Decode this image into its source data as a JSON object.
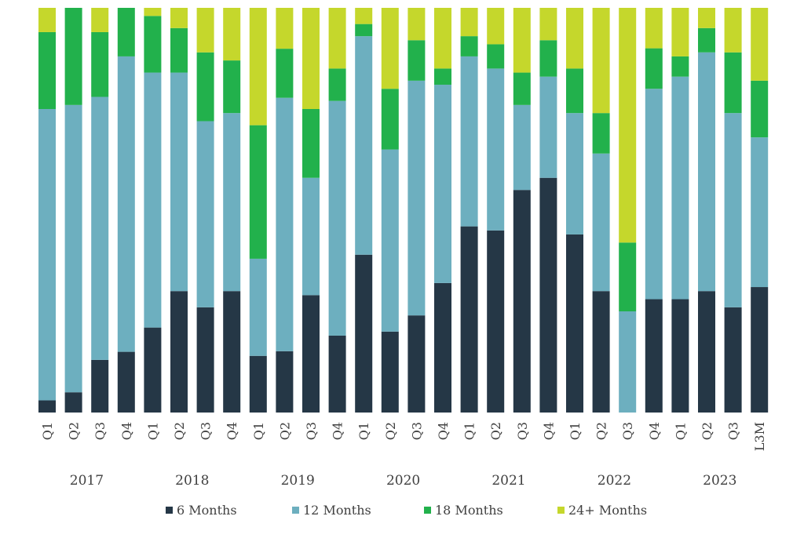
{
  "chart_data": {
    "type": "bar",
    "stacked": true,
    "normalized": true,
    "title": "",
    "xlabel": "",
    "ylabel": "",
    "ylim": [
      0,
      100
    ],
    "grid": false,
    "legend_position": "bottom",
    "categories": [
      "Q1",
      "Q2",
      "Q3",
      "Q4",
      "Q1",
      "Q2",
      "Q3",
      "Q4",
      "Q1",
      "Q2",
      "Q3",
      "Q4",
      "Q1",
      "Q2",
      "Q3",
      "Q4",
      "Q1",
      "Q2",
      "Q3",
      "Q4",
      "Q1",
      "Q2",
      "Q3",
      "Q4",
      "Q1",
      "Q2",
      "Q3",
      "L3M"
    ],
    "year_groups": [
      {
        "label": "2017",
        "start": 0,
        "end": 3
      },
      {
        "label": "2018",
        "start": 4,
        "end": 7
      },
      {
        "label": "2019",
        "start": 8,
        "end": 11
      },
      {
        "label": "2020",
        "start": 12,
        "end": 15
      },
      {
        "label": "2021",
        "start": 16,
        "end": 19
      },
      {
        "label": "2022",
        "start": 20,
        "end": 23
      },
      {
        "label": "2023",
        "start": 24,
        "end": 27
      }
    ],
    "series": [
      {
        "name": "6 Months",
        "color": "#253746",
        "values": [
          3,
          5,
          13,
          15,
          21,
          30,
          26,
          30,
          14,
          15,
          29,
          19,
          39,
          20,
          24,
          32,
          46,
          45,
          55,
          58,
          44,
          30,
          0,
          28,
          28,
          30,
          26,
          31
        ]
      },
      {
        "name": "12 Months",
        "color": "#6DAFBF",
        "values": [
          72,
          71,
          65,
          73,
          63,
          54,
          46,
          44,
          24,
          62,
          29,
          58,
          54,
          45,
          58,
          49,
          42,
          40,
          21,
          25,
          30,
          34,
          25,
          52,
          55,
          59,
          48,
          37
        ]
      },
      {
        "name": "18 Months",
        "color": "#22B14C",
        "values": [
          19,
          24,
          16,
          12,
          14,
          11,
          17,
          13,
          33,
          12,
          17,
          8,
          3,
          15,
          10,
          4,
          5,
          6,
          8,
          9,
          11,
          10,
          17,
          10,
          5,
          6,
          15,
          14
        ]
      },
      {
        "name": "24+ Months",
        "color": "#C5D72C",
        "values": [
          6,
          0,
          6,
          0,
          2,
          5,
          11,
          13,
          29,
          10,
          25,
          15,
          4,
          20,
          8,
          15,
          7,
          9,
          16,
          8,
          15,
          26,
          58,
          10,
          12,
          5,
          11,
          18
        ]
      }
    ]
  }
}
